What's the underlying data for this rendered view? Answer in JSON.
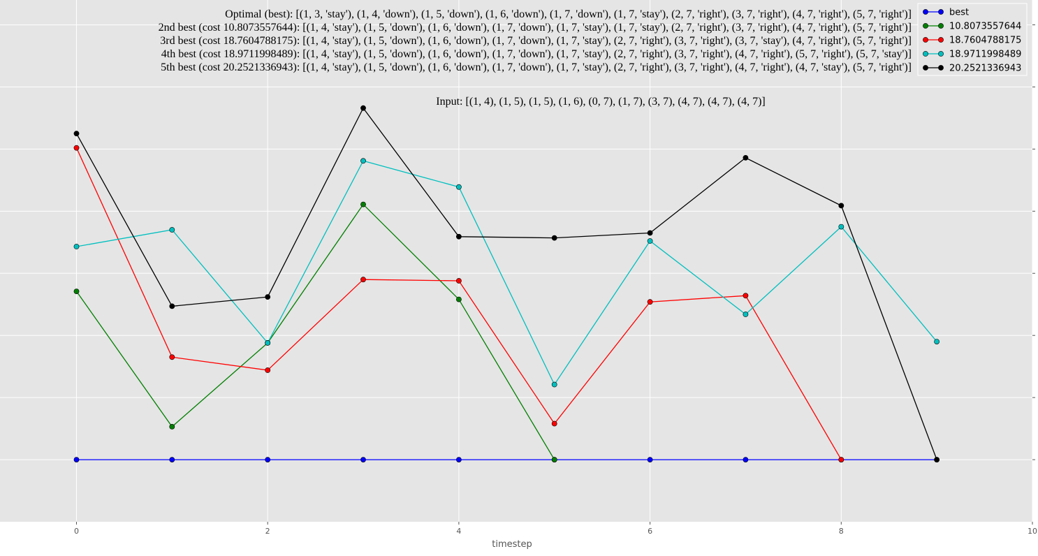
{
  "chart_data": {
    "type": "line",
    "title_lines": [
      "Optimal (best): [(1, 3, 'stay'), (1, 4, 'down'), (1, 5, 'down'), (1, 6, 'down'), (1, 7, 'down'), (1, 7, 'stay'), (2, 7, 'right'), (3, 7, 'right'), (4, 7, 'right'), (5, 7, 'right')]",
      "2nd best (cost 10.8073557644): [(1, 4, 'stay'), (1, 5, 'down'), (1, 6, 'down'), (1, 7, 'down'), (1, 7, 'stay'), (1, 7, 'stay'), (2, 7, 'right'), (3, 7, 'right'), (4, 7, 'right'), (5, 7, 'right')]",
      "3rd best (cost 18.7604788175): [(1, 4, 'stay'), (1, 5, 'down'), (1, 6, 'down'), (1, 7, 'down'), (1, 7, 'stay'), (2, 7, 'right'), (3, 7, 'right'), (3, 7, 'stay'), (4, 7, 'right'), (5, 7, 'right')]",
      "4th best (cost 18.9711998489): [(1, 4, 'stay'), (1, 5, 'down'), (1, 6, 'down'), (1, 7, 'down'), (1, 7, 'stay'), (2, 7, 'right'), (3, 7, 'right'), (4, 7, 'right'), (5, 7, 'right'), (5, 7, 'stay')]",
      "5th best (cost 20.2521336943): [(1, 4, 'stay'), (1, 5, 'down'), (1, 6, 'down'), (1, 7, 'down'), (1, 7, 'stay'), (2, 7, 'right'), (3, 7, 'right'), (4, 7, 'right'), (4, 7, 'stay'), (5, 7, 'right')]"
    ],
    "input_line": "Input: [(1, 4), (1, 5), (1, 5), (1, 6), (0, 7), (1, 7), (3, 7), (4, 7), (4, 7), (4, 7)]",
    "xlabel": "timestep",
    "ylabel": "",
    "xlim": [
      -0.8,
      10
    ],
    "ylim": [
      -1,
      7.4
    ],
    "x_ticks": [
      0,
      2,
      4,
      6,
      8,
      10
    ],
    "y_ticks": [
      0,
      1,
      2,
      3,
      4,
      5,
      6,
      7
    ],
    "y_tick_labels_visible": false,
    "grid": true,
    "legend_position": "top-right",
    "x": [
      0,
      1,
      2,
      3,
      4,
      5,
      6,
      7,
      8,
      9
    ],
    "series": [
      {
        "name": "best",
        "color": "#0000ff",
        "values": [
          0,
          0,
          0,
          0,
          0,
          0,
          0,
          0,
          0,
          0
        ]
      },
      {
        "name": "10.8073557644",
        "color": "#007f00",
        "values": [
          2.71,
          0.53,
          1.88,
          4.11,
          2.58,
          0,
          null,
          null,
          null,
          null
        ]
      },
      {
        "name": "18.7604788175",
        "color": "#ff0000",
        "values": [
          5.02,
          1.65,
          1.44,
          2.9,
          2.88,
          0.58,
          2.54,
          2.64,
          0,
          null
        ]
      },
      {
        "name": "18.9711998489",
        "color": "#00bfbf",
        "values": [
          3.43,
          3.7,
          1.88,
          4.81,
          4.39,
          1.21,
          3.52,
          2.34,
          3.75,
          1.9
        ]
      },
      {
        "name": "20.2521336943",
        "color": "#000000",
        "values": [
          5.25,
          2.47,
          2.62,
          5.66,
          3.59,
          3.57,
          3.65,
          4.86,
          4.09,
          0
        ]
      }
    ]
  }
}
